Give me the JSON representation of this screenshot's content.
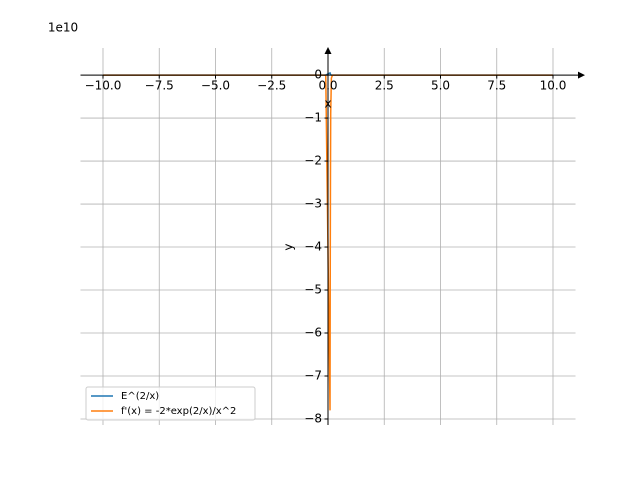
{
  "chart_data": {
    "type": "line",
    "x_label": "x",
    "y_label": "y",
    "offset_label": "1e10",
    "x": [
      -10,
      -1,
      -0.1,
      0.09,
      0.1,
      0.11,
      0.12,
      0.15,
      0.2,
      1,
      10
    ],
    "series": [
      {
        "name": "E^(2/x)",
        "color": "#1f77b4",
        "values": [
          0,
          0,
          0,
          0.05,
          0.03,
          0.02,
          0.01,
          0,
          0,
          0,
          0
        ]
      },
      {
        "name": "f'(x) = -2*exp(2/x)/x^2",
        "color": "#ff7f0e",
        "values": [
          0,
          0,
          0,
          -7.8,
          -4.5,
          -2.3,
          -0.9,
          -0.07,
          0,
          0,
          0
        ]
      }
    ],
    "xlim": [
      -11,
      11
    ],
    "ylim": [
      -8.14,
      0.63
    ],
    "xticks": [
      {
        "value": -10,
        "label": "−10.0"
      },
      {
        "value": -7.5,
        "label": "−7.5"
      },
      {
        "value": -5,
        "label": "−5.0"
      },
      {
        "value": -2.5,
        "label": "−2.5"
      },
      {
        "value": 0,
        "label": "0.0"
      },
      {
        "value": 2.5,
        "label": "2.5"
      },
      {
        "value": 5,
        "label": "5.0"
      },
      {
        "value": 7.5,
        "label": "7.5"
      },
      {
        "value": 10,
        "label": "10.0"
      }
    ],
    "yticks": [
      0,
      {
        "value": -1,
        "label": "−1"
      },
      {
        "value": -2,
        "label": "−2"
      },
      {
        "value": -3,
        "label": "−3"
      },
      {
        "value": -4,
        "label": "−4"
      },
      {
        "value": -5,
        "label": "−5"
      },
      {
        "value": -6,
        "label": "−6"
      },
      {
        "value": -7,
        "label": "−7"
      },
      {
        "value": -8,
        "label": "−8"
      }
    ],
    "grid": true,
    "legend": "lower left"
  }
}
